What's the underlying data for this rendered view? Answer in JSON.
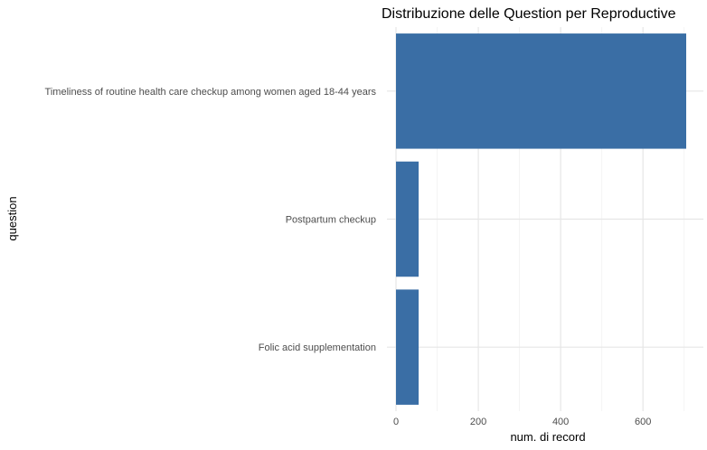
{
  "chart_data": {
    "type": "bar",
    "orientation": "horizontal",
    "title": "Distribuzione delle Question per Reproductive",
    "xlabel": "num. di record",
    "ylabel": "question",
    "categories": [
      "Timeliness of routine health care checkup among women aged 18-44 years",
      "Postpartum checkup",
      "Folic acid supplementation"
    ],
    "values": [
      705,
      55,
      55
    ],
    "xlim": [
      0,
      735
    ],
    "x_ticks": [
      0,
      200,
      400,
      600
    ],
    "grid": true,
    "legend": "none",
    "bar_color": "#3A6EA5"
  }
}
